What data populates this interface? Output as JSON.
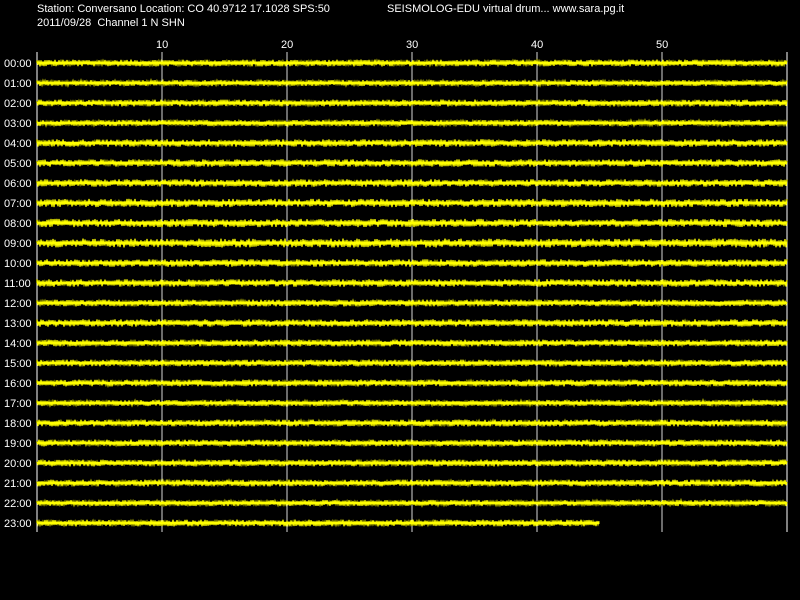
{
  "header": {
    "station_line": "Station: Conversano Location: CO 40.9712 17.1028 SPS:50",
    "date_line": "2011/09/28  Channel 1 N SHN",
    "title_right": "SEISMOLOG-EDU virtual drum... www.sara.pg.it"
  },
  "colors": {
    "background": "#000000",
    "trace": "#ffff00",
    "grid": "#ffffff",
    "text": "#ffffff"
  },
  "chart_data": {
    "type": "line",
    "xlabel": "",
    "ylabel": "",
    "xlim": [
      0,
      60
    ],
    "xticks": [
      10,
      20,
      30,
      40,
      50
    ],
    "grid": true,
    "series": [
      {
        "row": "00:00",
        "end_minute": 60,
        "amplitude": 1.0
      },
      {
        "row": "01:00",
        "end_minute": 60,
        "amplitude": 0.9
      },
      {
        "row": "02:00",
        "end_minute": 60,
        "amplitude": 1.0
      },
      {
        "row": "03:00",
        "end_minute": 60,
        "amplitude": 0.9
      },
      {
        "row": "04:00",
        "end_minute": 60,
        "amplitude": 1.1
      },
      {
        "row": "05:00",
        "end_minute": 60,
        "amplitude": 1.1
      },
      {
        "row": "06:00",
        "end_minute": 60,
        "amplitude": 1.1
      },
      {
        "row": "07:00",
        "end_minute": 60,
        "amplitude": 1.2
      },
      {
        "row": "08:00",
        "end_minute": 60,
        "amplitude": 1.2
      },
      {
        "row": "09:00",
        "end_minute": 60,
        "amplitude": 1.3
      },
      {
        "row": "10:00",
        "end_minute": 60,
        "amplitude": 1.1
      },
      {
        "row": "11:00",
        "end_minute": 60,
        "amplitude": 1.1
      },
      {
        "row": "12:00",
        "end_minute": 60,
        "amplitude": 1.0
      },
      {
        "row": "13:00",
        "end_minute": 60,
        "amplitude": 1.1
      },
      {
        "row": "14:00",
        "end_minute": 60,
        "amplitude": 1.0
      },
      {
        "row": "15:00",
        "end_minute": 60,
        "amplitude": 1.0
      },
      {
        "row": "16:00",
        "end_minute": 60,
        "amplitude": 1.0
      },
      {
        "row": "17:00",
        "end_minute": 60,
        "amplitude": 0.9
      },
      {
        "row": "18:00",
        "end_minute": 60,
        "amplitude": 1.0
      },
      {
        "row": "19:00",
        "end_minute": 60,
        "amplitude": 1.0
      },
      {
        "row": "20:00",
        "end_minute": 60,
        "amplitude": 1.0
      },
      {
        "row": "21:00",
        "end_minute": 60,
        "amplitude": 1.0
      },
      {
        "row": "22:00",
        "end_minute": 60,
        "amplitude": 0.9
      },
      {
        "row": "23:00",
        "end_minute": 45,
        "amplitude": 1.0
      }
    ]
  }
}
